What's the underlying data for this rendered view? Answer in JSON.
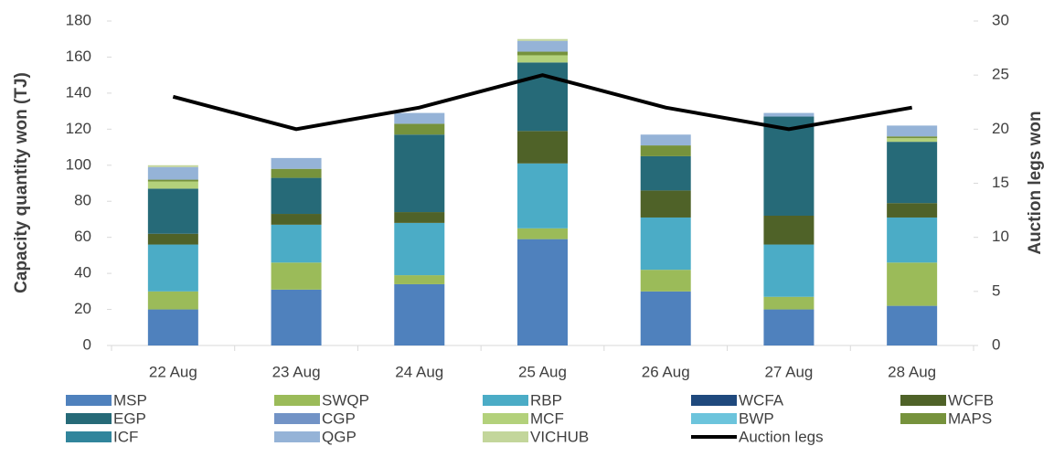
{
  "chart_data": {
    "type": "bar",
    "stacked": true,
    "y_label": "Capacity quantity won (TJ)",
    "y2_label": "Auction legs won",
    "categories": [
      "22 Aug",
      "23 Aug",
      "24 Aug",
      "25 Aug",
      "26 Aug",
      "27 Aug",
      "28 Aug"
    ],
    "ylim": [
      0,
      180
    ],
    "yticks": [
      0,
      20,
      40,
      60,
      80,
      100,
      120,
      140,
      160,
      180
    ],
    "y2lim": [
      0,
      30
    ],
    "y2ticks": [
      0,
      5,
      10,
      15,
      20,
      25,
      30
    ],
    "legend": "bottom",
    "series": [
      {
        "name": "MSP",
        "color": "#4f81bd",
        "values": [
          20,
          31,
          34,
          59,
          30,
          20,
          22
        ]
      },
      {
        "name": "SWQP",
        "color": "#9bbb59",
        "values": [
          10,
          15,
          5,
          6,
          12,
          7,
          24
        ]
      },
      {
        "name": "RBP",
        "color": "#4bacc6",
        "values": [
          26,
          21,
          29,
          36,
          29,
          29,
          25
        ]
      },
      {
        "name": "WCFA",
        "color": "#1f497d",
        "values": [
          0,
          0,
          0,
          0,
          0,
          0,
          0
        ]
      },
      {
        "name": "WCFB",
        "color": "#4f6228",
        "values": [
          6,
          6,
          6,
          18,
          15,
          16,
          8
        ]
      },
      {
        "name": "EGP",
        "color": "#266a78",
        "values": [
          25,
          20,
          43,
          38,
          19,
          55,
          34
        ]
      },
      {
        "name": "CGP",
        "color": "#7293c6",
        "values": [
          0,
          0,
          0,
          0,
          0,
          0,
          0
        ]
      },
      {
        "name": "MCF",
        "color": "#b3d17b",
        "values": [
          4,
          0,
          0,
          4,
          0,
          0,
          2
        ]
      },
      {
        "name": "BWP",
        "color": "#6cc4dc",
        "values": [
          0,
          0,
          0,
          0,
          0,
          0,
          0
        ]
      },
      {
        "name": "MAPS",
        "color": "#76923c",
        "values": [
          1,
          5,
          6,
          2,
          6,
          0,
          1
        ]
      },
      {
        "name": "ICF",
        "color": "#31859c",
        "values": [
          0,
          0,
          0,
          0,
          0,
          0,
          0
        ]
      },
      {
        "name": "QGP",
        "color": "#95b3d7",
        "values": [
          7,
          6,
          6,
          6,
          6,
          2,
          6
        ]
      },
      {
        "name": "VICHUB",
        "color": "#c3d69b",
        "values": [
          1,
          0,
          0,
          1,
          0,
          0,
          0
        ]
      },
      {
        "name": "Auction legs",
        "type": "line",
        "axis": "y2",
        "color": "#000000",
        "values": [
          23,
          20,
          22,
          25,
          22,
          20,
          22
        ]
      }
    ]
  }
}
